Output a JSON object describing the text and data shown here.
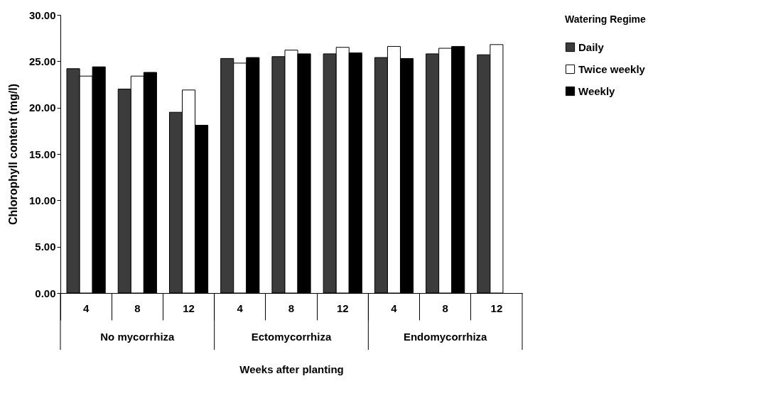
{
  "chart_data": {
    "type": "bar",
    "xlabel": "Weeks after planting",
    "ylabel": "Chlorophyll content (mg/l)",
    "legend_title": "Watering Regime",
    "legend": "top right",
    "grid": false,
    "categories": [
      "4",
      "8",
      "12",
      "4",
      "8",
      "12",
      "4",
      "8",
      "12"
    ],
    "annotations": [
      "No mycorrhiza",
      "Ectomycorrhiza",
      "Endomycorrhiza"
    ],
    "ylim": [
      0,
      30
    ],
    "yticks": [
      {
        "value": 0,
        "label": "0.00"
      },
      {
        "value": 5,
        "label": "5.00"
      },
      {
        "value": 10,
        "label": "10.00"
      },
      {
        "value": 15,
        "label": "15.00"
      },
      {
        "value": 20,
        "label": "20.00"
      },
      {
        "value": 25,
        "label": "25.00"
      },
      {
        "value": 30,
        "label": "30.00"
      }
    ],
    "series": [
      {
        "name": "Daily",
        "color": "#3c3c3c",
        "values": [
          24.2,
          22.0,
          19.5,
          25.3,
          25.5,
          25.8,
          25.4,
          25.8,
          25.7
        ]
      },
      {
        "name": "Twice weekly",
        "color": "#ffffff",
        "values": [
          23.4,
          23.4,
          21.9,
          24.8,
          26.2,
          26.5,
          26.6,
          26.4,
          26.8
        ]
      },
      {
        "name": "Weekly",
        "color": "#000000",
        "values": [
          24.4,
          23.8,
          18.1,
          25.4,
          25.8,
          25.9,
          25.3,
          26.6,
          null
        ]
      }
    ]
  }
}
